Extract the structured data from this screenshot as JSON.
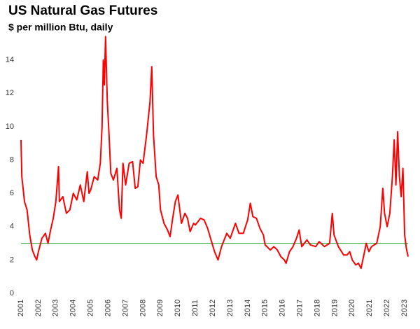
{
  "chart_data": {
    "type": "line",
    "title": "US Natural Gas Futures",
    "subtitle": "$ per million Btu, daily",
    "x": [
      2001.0,
      2001.05,
      2001.2,
      2001.35,
      2001.5,
      2001.65,
      2001.8,
      2001.9,
      2002.0,
      2002.2,
      2002.4,
      2002.55,
      2002.7,
      2002.85,
      2003.0,
      2003.15,
      2003.2,
      2003.4,
      2003.6,
      2003.8,
      2004.0,
      2004.2,
      2004.4,
      2004.6,
      2004.8,
      2004.9,
      2005.0,
      2005.2,
      2005.4,
      2005.55,
      2005.65,
      2005.72,
      2005.78,
      2005.85,
      2005.95,
      2006.05,
      2006.15,
      2006.3,
      2006.5,
      2006.65,
      2006.75,
      2006.85,
      2007.0,
      2007.2,
      2007.4,
      2007.55,
      2007.7,
      2007.85,
      2008.0,
      2008.2,
      2008.4,
      2008.5,
      2008.6,
      2008.75,
      2008.9,
      2009.0,
      2009.2,
      2009.4,
      2009.55,
      2009.7,
      2009.85,
      2010.0,
      2010.2,
      2010.4,
      2010.55,
      2010.7,
      2010.9,
      2011.0,
      2011.3,
      2011.5,
      2011.7,
      2011.9,
      2012.1,
      2012.3,
      2012.5,
      2012.8,
      2013.0,
      2013.3,
      2013.5,
      2013.75,
      2014.0,
      2014.15,
      2014.3,
      2014.5,
      2014.7,
      2014.9,
      2015.0,
      2015.3,
      2015.5,
      2015.7,
      2015.9,
      2016.1,
      2016.2,
      2016.4,
      2016.6,
      2016.8,
      2016.95,
      2017.1,
      2017.4,
      2017.6,
      2017.9,
      2018.1,
      2018.4,
      2018.7,
      2018.85,
      2018.95,
      2019.2,
      2019.5,
      2019.7,
      2019.85,
      2020.0,
      2020.2,
      2020.35,
      2020.5,
      2020.7,
      2020.8,
      2020.95,
      2021.1,
      2021.4,
      2021.6,
      2021.75,
      2021.85,
      2022.0,
      2022.15,
      2022.3,
      2022.4,
      2022.5,
      2022.6,
      2022.7,
      2022.8,
      2022.9,
      2023.0,
      2023.1,
      2023.2
    ],
    "series": [
      {
        "name": "Natural gas futures",
        "color": "#ff0000",
        "values": [
          9.2,
          7.0,
          5.5,
          5.0,
          3.5,
          2.6,
          2.2,
          2.0,
          2.5,
          3.3,
          3.6,
          3.0,
          3.8,
          4.5,
          5.5,
          7.6,
          5.5,
          5.8,
          4.8,
          5.0,
          6.0,
          5.6,
          6.5,
          5.5,
          7.3,
          6.0,
          6.2,
          7.0,
          6.8,
          7.8,
          10.0,
          14.0,
          12.5,
          15.4,
          11.5,
          9.5,
          7.2,
          6.8,
          7.5,
          5.0,
          4.5,
          7.8,
          6.5,
          7.8,
          7.9,
          6.3,
          6.4,
          8.0,
          7.8,
          9.5,
          11.5,
          13.6,
          9.5,
          7.0,
          6.5,
          5.0,
          4.2,
          3.8,
          3.4,
          4.5,
          5.5,
          5.9,
          4.2,
          4.8,
          4.5,
          3.7,
          4.2,
          4.1,
          4.5,
          4.4,
          3.9,
          3.2,
          2.5,
          2.0,
          2.8,
          3.6,
          3.3,
          4.2,
          3.6,
          3.6,
          4.4,
          5.4,
          4.6,
          4.5,
          3.9,
          3.5,
          2.9,
          2.6,
          2.8,
          2.6,
          2.2,
          2.0,
          1.8,
          2.5,
          2.8,
          3.3,
          3.8,
          2.8,
          3.2,
          2.9,
          2.8,
          3.1,
          2.8,
          3.0,
          4.8,
          3.5,
          2.8,
          2.3,
          2.3,
          2.5,
          2.0,
          1.7,
          1.8,
          1.5,
          2.5,
          3.0,
          2.5,
          2.8,
          3.0,
          4.0,
          6.3,
          4.8,
          4.0,
          4.8,
          7.0,
          9.2,
          6.5,
          9.7,
          7.0,
          5.8,
          7.5,
          3.5,
          2.7,
          2.2
        ]
      }
    ],
    "reference_line": {
      "value": 3,
      "color": "#3cb44b"
    },
    "xlim": [
      2001,
      2023.6
    ],
    "xticks": [
      2001,
      2002,
      2003,
      2004,
      2005,
      2006,
      2007,
      2008,
      2009,
      2010,
      2011,
      2012,
      2013,
      2014,
      2015,
      2016,
      2017,
      2018,
      2019,
      2020,
      2021,
      2022,
      2023
    ],
    "ylim": [
      0,
      16
    ],
    "yticks": [
      0,
      2,
      4,
      6,
      8,
      10,
      12,
      14
    ],
    "grid": false
  }
}
